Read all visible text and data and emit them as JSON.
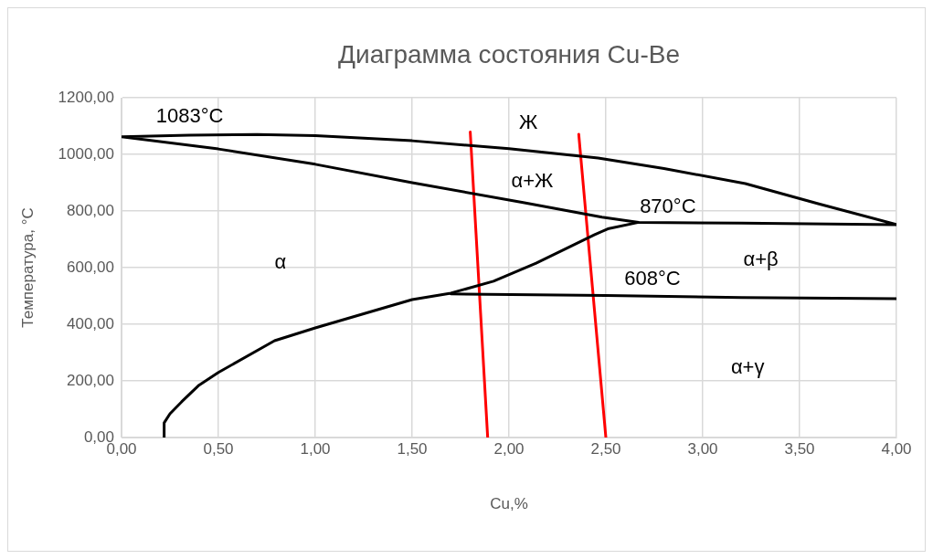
{
  "chart_data": {
    "type": "line",
    "title": "Диаграмма состояния Cu-Be",
    "xlabel": "Cu,%",
    "ylabel": "Температура, °C",
    "xlim": [
      0,
      4
    ],
    "ylim": [
      0,
      1200
    ],
    "xticks": [
      {
        "value": 0,
        "label": "0,00"
      },
      {
        "value": 0.5,
        "label": "0,50"
      },
      {
        "value": 1,
        "label": "1,00"
      },
      {
        "value": 1.5,
        "label": "1,50"
      },
      {
        "value": 2,
        "label": "2,00"
      },
      {
        "value": 2.5,
        "label": "2,50"
      },
      {
        "value": 3,
        "label": "3,00"
      },
      {
        "value": 3.5,
        "label": "3,50"
      },
      {
        "value": 4,
        "label": "4,00"
      }
    ],
    "yticks": [
      {
        "value": 0,
        "label": "0,00"
      },
      {
        "value": 200,
        "label": "200,00"
      },
      {
        "value": 400,
        "label": "400,00"
      },
      {
        "value": 600,
        "label": "600,00"
      },
      {
        "value": 800,
        "label": "800,00"
      },
      {
        "value": 1000,
        "label": "1000,00"
      },
      {
        "value": 1200,
        "label": "1200,00"
      }
    ],
    "grid": true,
    "legend": false,
    "marker": "none",
    "line_style": "solid",
    "series": [
      {
        "color": "#000000",
        "x": [
          0.22,
          0.22,
          0.25,
          0.31,
          0.4,
          0.5,
          0.79,
          1.0,
          1.5,
          1.7,
          1.92,
          2.14,
          2.44,
          2.51,
          2.67,
          3.2,
          4,
          3.6,
          3.22,
          2.8,
          2.46,
          2.0,
          1.5,
          1.0,
          0.7,
          0.35,
          0,
          0.5,
          1.0,
          1.5,
          2.08,
          2.48,
          2.67
        ],
        "values": [
          0,
          52,
          84,
          126,
          185,
          230,
          342,
          387,
          487,
          510,
          552,
          616,
          716,
          737,
          760,
          757,
          752,
          825,
          897,
          950,
          987,
          1020,
          1048,
          1066,
          1070,
          1068,
          1062,
          1019,
          965,
          900,
          829,
          778,
          760
        ]
      },
      {
        "color": "#000000",
        "x": [
          1.7,
          2.5,
          3.2,
          4
        ],
        "values": [
          507,
          502,
          494,
          490
        ]
      },
      {
        "color": "#ff0000",
        "x": [
          1.8,
          1.89
        ],
        "values": [
          1079,
          0
        ]
      },
      {
        "color": "#ff0000",
        "x": [
          2.36,
          2.5
        ],
        "values": [
          1071,
          0
        ]
      }
    ],
    "annotations": [
      "1083°C",
      "Ж",
      "α+Ж",
      "870°C",
      "α",
      "α+β",
      "608°C",
      "α+γ"
    ]
  }
}
